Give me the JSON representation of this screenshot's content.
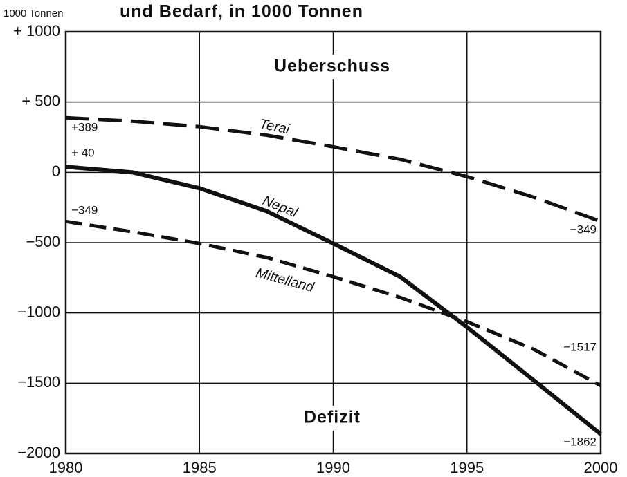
{
  "chart_data": {
    "type": "line",
    "title": "und Bedarf, in 1000 Tonnen",
    "y_label": "1000 Tonnen",
    "annotations": [
      "Ueberschuss",
      "Defizit"
    ],
    "x": [
      1980,
      1982.5,
      1985,
      1987.5,
      1990,
      1992.5,
      1995,
      1997.5,
      2000
    ],
    "xlim": [
      1980,
      2000
    ],
    "xticks": [
      1980,
      1985,
      1990,
      1995,
      2000
    ],
    "ylim": [
      -2000,
      1000
    ],
    "yticks": [
      {
        "value": 1000,
        "label": "+ 1000"
      },
      {
        "value": 500,
        "label": "+ 500"
      },
      0,
      {
        "value": -500,
        "label": "−500"
      },
      {
        "value": -1000,
        "label": "−1000"
      },
      {
        "value": -1500,
        "label": "−1500"
      },
      {
        "value": -2000,
        "label": "−2000"
      }
    ],
    "grid": true,
    "series": [
      {
        "name": "Terai",
        "color": "#111111",
        "dash": "dashed",
        "values": [
          389,
          364,
          325,
          265,
          182,
          93,
          -30,
          -177,
          -349
        ],
        "value_labels": [
          "+389",
          null,
          null,
          null,
          null,
          null,
          null,
          null,
          "−349"
        ]
      },
      {
        "name": "Nepal",
        "color": "#111111",
        "dash": "solid",
        "values": [
          40,
          0,
          -113,
          -275,
          -506,
          -742,
          -1101,
          -1480,
          -1862
        ],
        "value_labels": [
          "+ 40",
          null,
          null,
          null,
          null,
          null,
          null,
          null,
          "−1862"
        ]
      },
      {
        "name": "Mittelland",
        "color": "#111111",
        "dash": "dashed",
        "values": [
          -349,
          -423,
          -506,
          -605,
          -742,
          -890,
          -1062,
          -1259,
          -1517
        ],
        "value_labels": [
          "−349",
          null,
          null,
          null,
          null,
          null,
          null,
          null,
          "−1517"
        ]
      }
    ]
  }
}
